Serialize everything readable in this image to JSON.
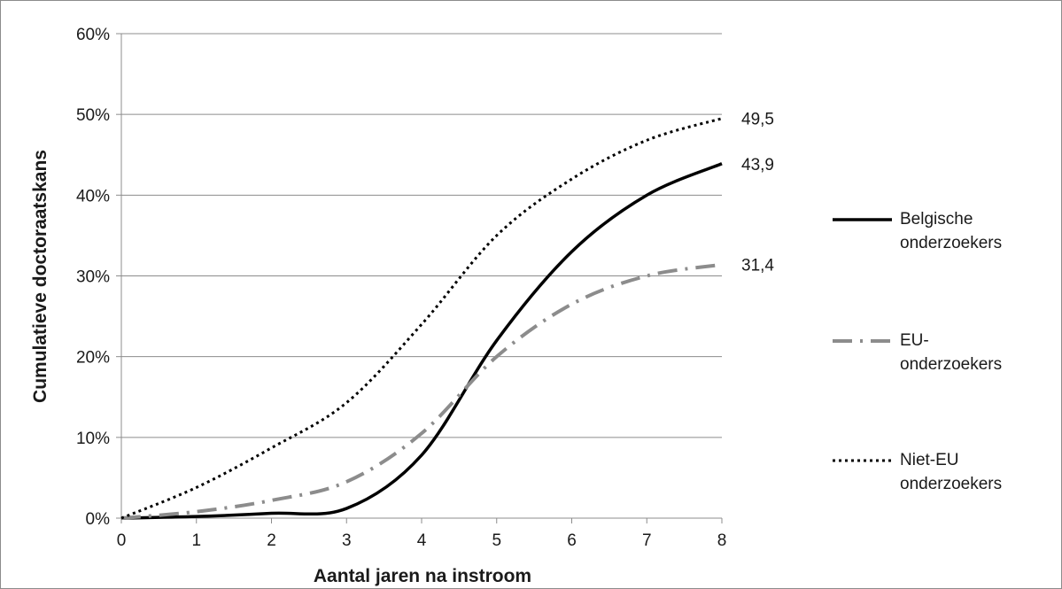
{
  "chart_data": {
    "type": "line",
    "title": "",
    "xlabel": "Aantal jaren na instroom",
    "ylabel": "Cumulatieve doctoraatskans",
    "x": [
      0,
      1,
      2,
      3,
      4,
      5,
      6,
      7,
      8
    ],
    "x_tick_labels": [
      "0",
      "1",
      "2",
      "3",
      "4",
      "5",
      "6",
      "7",
      "8"
    ],
    "xlim": [
      0,
      8
    ],
    "ylim": [
      0,
      60
    ],
    "y_tick_labels": [
      "0%",
      "10%",
      "20%",
      "30%",
      "40%",
      "50%",
      "60%"
    ],
    "y_unit": "%",
    "grid": "horizontal",
    "legend_position": "right",
    "series": [
      {
        "name": "Belgische onderzoekers",
        "legend_lines": [
          "Belgische",
          "onderzoekers"
        ],
        "values": [
          0,
          0.2,
          0.6,
          1.2,
          7.8,
          22,
          33,
          40,
          43.9
        ],
        "end_label": "43,9",
        "style": "solid",
        "color": "#000000"
      },
      {
        "name": "EU-onderzoekers",
        "legend_lines": [
          "EU-",
          "onderzoekers"
        ],
        "values": [
          0,
          0.8,
          2.2,
          4.5,
          10.5,
          20,
          26.5,
          30,
          31.4
        ],
        "end_label": "31,4",
        "style": "dashdot",
        "color": "#8c8c8c"
      },
      {
        "name": "Niet-EU onderzoekers",
        "legend_lines": [
          "Niet-EU",
          "onderzoekers"
        ],
        "values": [
          0,
          3.8,
          8.7,
          14.3,
          24,
          35,
          42,
          46.8,
          49.5
        ],
        "end_label": "49,5",
        "style": "dotted",
        "color": "#000000"
      }
    ]
  }
}
